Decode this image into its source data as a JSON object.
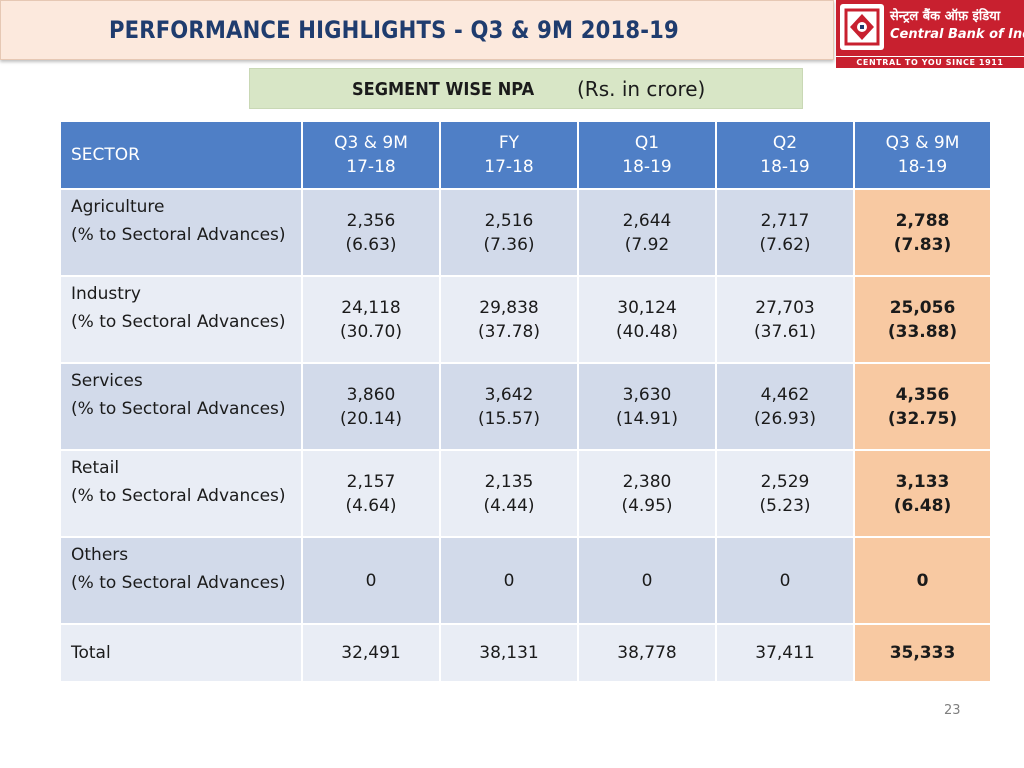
{
  "header": {
    "title": "PERFORMANCE HIGHLIGHTS - Q3 & 9M 2018-19"
  },
  "logo": {
    "hindi": "सेन्ट्रल बैंक ऑफ़ इंडिया",
    "english": "Central Bank of India",
    "tagline": "CENTRAL TO YOU SINCE 1911"
  },
  "subtitle": {
    "main": "SEGMENT WISE NPA",
    "unit": "(Rs. in crore)"
  },
  "table": {
    "columns": [
      {
        "line1": "SECTOR",
        "line2": ""
      },
      {
        "line1": "Q3 & 9M",
        "line2": "17-18"
      },
      {
        "line1": "FY",
        "line2": "17-18"
      },
      {
        "line1": "Q1",
        "line2": "18-19"
      },
      {
        "line1": "Q2",
        "line2": "18-19"
      },
      {
        "line1": "Q3 & 9M",
        "line2": "18-19"
      }
    ],
    "sub_label": "(% to Sectoral Advances)",
    "rows": [
      {
        "sector": "Agriculture",
        "values": [
          {
            "amt": "2,356",
            "pct": "(6.63)"
          },
          {
            "amt": "2,516",
            "pct": "(7.36)"
          },
          {
            "amt": "2,644",
            "pct": "(7.92"
          },
          {
            "amt": "2,717",
            "pct": "(7.62)"
          },
          {
            "amt": "2,788",
            "pct": "(7.83)"
          }
        ]
      },
      {
        "sector": "Industry",
        "values": [
          {
            "amt": "24,118",
            "pct": "(30.70)"
          },
          {
            "amt": "29,838",
            "pct": "(37.78)"
          },
          {
            "amt": "30,124",
            "pct": "(40.48)"
          },
          {
            "amt": "27,703",
            "pct": "(37.61)"
          },
          {
            "amt": "25,056",
            "pct": "(33.88)"
          }
        ]
      },
      {
        "sector": "Services",
        "values": [
          {
            "amt": "3,860",
            "pct": "(20.14)"
          },
          {
            "amt": "3,642",
            "pct": "(15.57)"
          },
          {
            "amt": "3,630",
            "pct": "(14.91)"
          },
          {
            "amt": "4,462",
            "pct": "(26.93)"
          },
          {
            "amt": "4,356",
            "pct": "(32.75)"
          }
        ]
      },
      {
        "sector": "Retail",
        "values": [
          {
            "amt": "2,157",
            "pct": "(4.64)"
          },
          {
            "amt": "2,135",
            "pct": "(4.44)"
          },
          {
            "amt": "2,380",
            "pct": "(4.95)"
          },
          {
            "amt": "2,529",
            "pct": "(5.23)"
          },
          {
            "amt": "3,133",
            "pct": "(6.48)"
          }
        ]
      },
      {
        "sector": "Others",
        "values": [
          {
            "amt": "0",
            "pct": ""
          },
          {
            "amt": "0",
            "pct": ""
          },
          {
            "amt": "0",
            "pct": ""
          },
          {
            "amt": "0",
            "pct": ""
          },
          {
            "amt": "0",
            "pct": ""
          }
        ]
      }
    ],
    "total": {
      "label": "Total",
      "values": [
        "32,491",
        "38,131",
        "38,778",
        "37,411",
        "35,333"
      ]
    }
  },
  "footer": {
    "page_number": "23"
  },
  "colors": {
    "header_blue": "#4f7fc6",
    "row_dark": "#d2daea",
    "row_light": "#e9edf5",
    "highlight": "#f8c9a2",
    "title_bg": "#fce9dd",
    "subtitle_bg": "#d8e6c6",
    "brand_red": "#c8202f"
  }
}
